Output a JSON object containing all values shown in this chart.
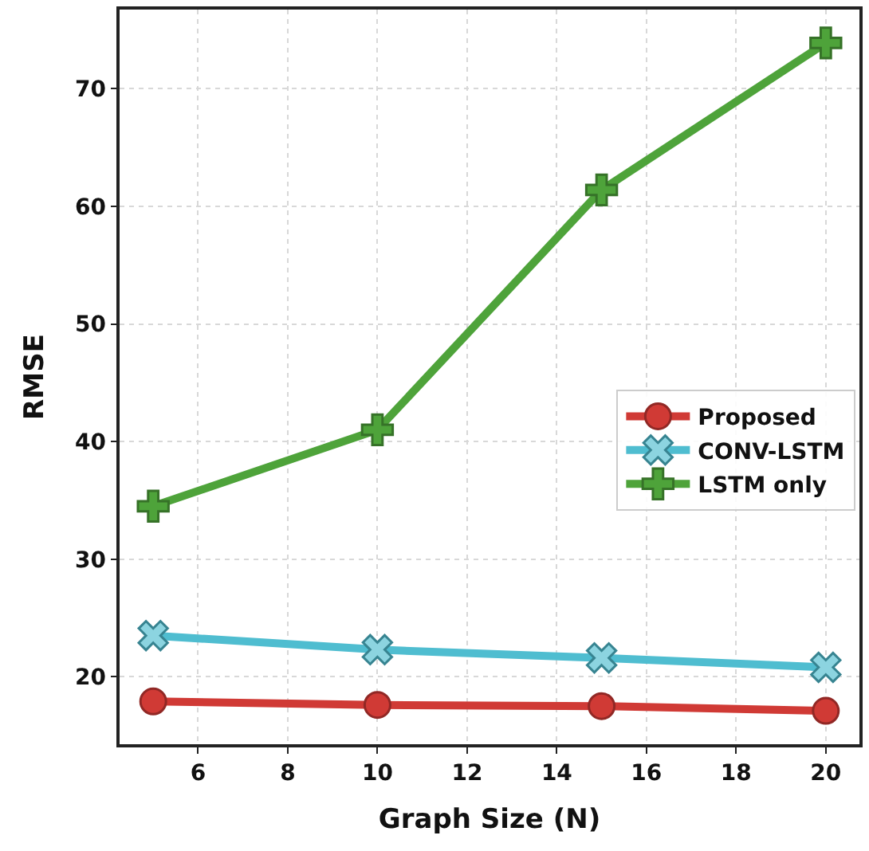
{
  "chart_data": {
    "type": "line",
    "xlabel": "Graph Size (N)",
    "ylabel": "RMSE",
    "x": [
      5,
      10,
      15,
      20
    ],
    "series": [
      {
        "name": "Proposed",
        "color": "#d03a35",
        "marker": "circle",
        "values": [
          17.9,
          17.6,
          17.5,
          17.1
        ]
      },
      {
        "name": "CONV-LSTM",
        "color": "#4fbdd0",
        "marker": "x",
        "values": [
          23.5,
          22.3,
          21.6,
          20.8
        ]
      },
      {
        "name": "LSTM only",
        "color": "#4ea33a",
        "marker": "cross",
        "values": [
          34.5,
          41.0,
          61.4,
          73.9
        ]
      }
    ],
    "xlim": [
      4.25,
      20.75
    ],
    "xticks": [
      6,
      8,
      10,
      12,
      14,
      16,
      18,
      20
    ],
    "ylim": [
      14.26,
      76.74
    ],
    "yticks": [
      20,
      30,
      40,
      50,
      60,
      70
    ],
    "grid": true,
    "legend": "center right",
    "line_style": "solid"
  }
}
